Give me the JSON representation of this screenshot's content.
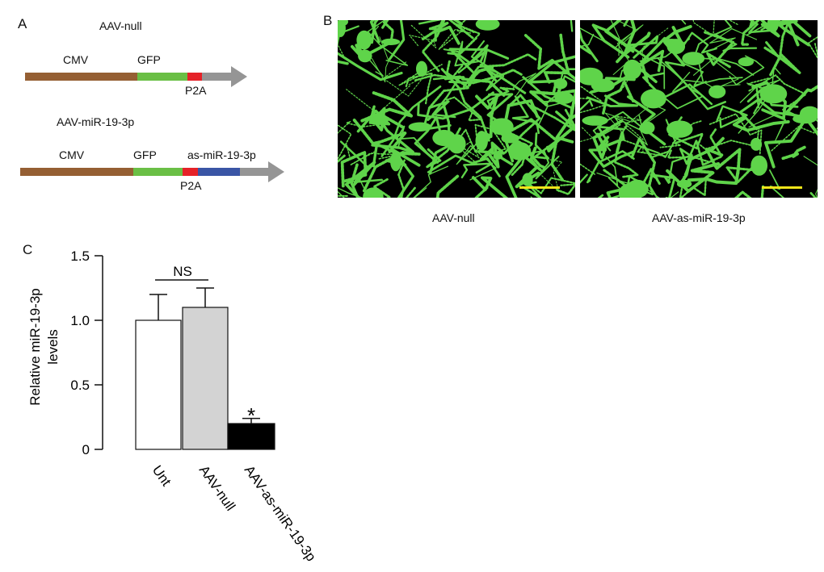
{
  "panel_a": {
    "label": "A",
    "construct1": {
      "title": "AAV-null",
      "cmv": "CMV",
      "gfp": "GFP",
      "p2a": "P2A"
    },
    "construct2": {
      "title": "AAV-miR-19-3p",
      "cmv": "CMV",
      "gfp": "GFP",
      "p2a": "P2A",
      "insert": "as-miR-19-3p"
    },
    "colors": {
      "cmv": "#955f33",
      "gfp": "#6abf45",
      "p2a": "#e52228",
      "insert": "#3a55a5",
      "arrow": "#959595"
    }
  },
  "panel_b": {
    "label": "B",
    "images": [
      {
        "caption": "AAV-null"
      },
      {
        "caption": "AAV-as-miR-19-3p"
      }
    ],
    "stain_color": "#5fd44a",
    "scale_bar_color": "#f2e51a"
  },
  "panel_c": {
    "label": "C"
  },
  "chart_data": {
    "type": "bar",
    "categories": [
      "Unt",
      "AAV-null",
      "AAV-as-miR-19-3p"
    ],
    "values": [
      1.0,
      1.1,
      0.2
    ],
    "error_upper": [
      1.2,
      1.25,
      0.24
    ],
    "bar_colors": [
      "#ffffff",
      "#d3d3d3",
      "#000000"
    ],
    "ylabel_line1": "Relative miR-19-3p",
    "ylabel_line2": "levels",
    "ylim": [
      0,
      1.5
    ],
    "yticks": [
      "0",
      "0.5",
      "1.0",
      "1.5"
    ],
    "ytick_values": [
      0,
      0.5,
      1.0,
      1.5
    ],
    "annotations": {
      "ns": "NS",
      "star": "*"
    },
    "grid": false
  }
}
